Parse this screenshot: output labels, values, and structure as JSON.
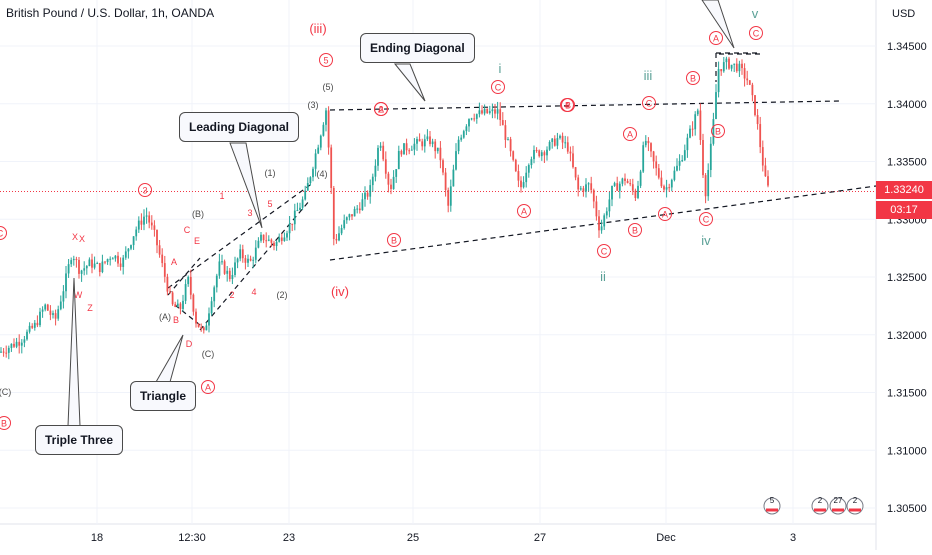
{
  "header": {
    "title": "British Pound / U.S. Dollar, 1h, OANDA",
    "currency": "USD"
  },
  "price": {
    "current": "1.33240",
    "countdown": "03:17",
    "color": "#f23645"
  },
  "colors": {
    "bull": "#26a69a",
    "bear": "#ef5350",
    "wave": "#f23645",
    "wave_alt": "#5aa096"
  },
  "callouts": {
    "leading_diagonal": "Leading Diagonal",
    "ending_diagonal": "Ending Diagonal",
    "triangle": "Triangle",
    "triple_three": "Triple Three"
  },
  "badges": {
    "a": "5",
    "b": "2",
    "c": "27",
    "d": "2"
  },
  "chart_data": {
    "type": "candlestick",
    "symbol": "GBPUSD",
    "interval": "1h",
    "yticks": [
      "1.34500",
      "1.34000",
      "1.33500",
      "1.33000",
      "1.32500",
      "1.32000",
      "1.31500",
      "1.31000",
      "1.30500"
    ],
    "xticks": [
      "18",
      "12:30",
      "23",
      "25",
      "27",
      "Dec",
      "3"
    ],
    "ylim": [
      1.3032,
      1.348
    ],
    "close_price": 1.3324,
    "wave_labels": {
      "circled_red": [
        "3",
        "5",
        "A",
        "B",
        "C",
        "A",
        "B",
        "C",
        "A",
        "B",
        "C",
        "A",
        "B",
        "C",
        "A",
        "B",
        "C",
        "A",
        "B",
        "C",
        "4",
        "2"
      ],
      "roman": [
        "(iii)",
        "(iv)",
        "i",
        "ii",
        "iii",
        "iv",
        "v"
      ],
      "plain": [
        "X",
        "X",
        "W",
        "Y",
        "Z",
        "A",
        "B",
        "C",
        "D",
        "E",
        "(A)",
        "(B)",
        "(C)",
        "1",
        "2",
        "3",
        "4",
        "5",
        "(1)",
        "(2)",
        "(3)",
        "(4)",
        "(5)",
        "(C)"
      ]
    }
  }
}
